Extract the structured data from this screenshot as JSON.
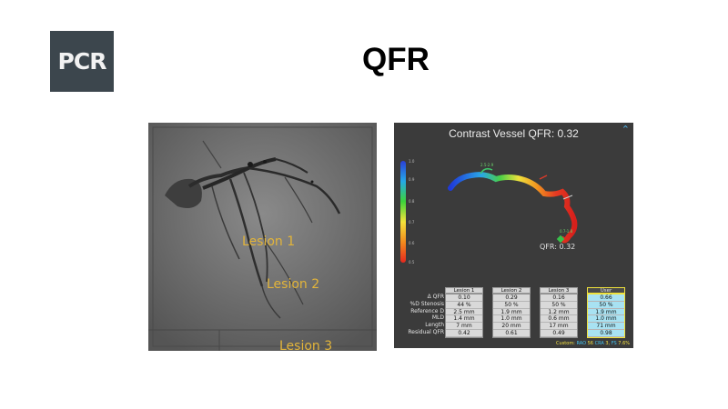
{
  "logo": {
    "text": "PCR"
  },
  "slide_title": "QFR",
  "angiogram": {
    "lesions": [
      "Lesion 1",
      "Lesion 2",
      "Lesion 3"
    ]
  },
  "qfr_panel": {
    "title": "Contrast Vessel QFR: 0.32",
    "qfr_marker": "QFR: 0.32",
    "segment_labels": [
      "2.5-2.9",
      "0.7-1.8"
    ],
    "row_labels": [
      "Δ QFR",
      "%D Stenosis",
      "Reference D",
      "MLD",
      "Length",
      "Residual QFR"
    ],
    "columns": [
      {
        "header": "Lesion 1",
        "values": [
          "0.10",
          "44 %",
          "2.5 mm",
          "1.4 mm",
          "7 mm",
          "0.42"
        ]
      },
      {
        "header": "Lesion 2",
        "values": [
          "0.29",
          "50 %",
          "1.9 mm",
          "1.0 mm",
          "20 mm",
          "0.61"
        ]
      },
      {
        "header": "Lesion 3",
        "values": [
          "0.16",
          "50 %",
          "1.2 mm",
          "0.6 mm",
          "17 mm",
          "0.49"
        ]
      },
      {
        "header": "User",
        "values": [
          "0.66",
          "50 %",
          "1.9 mm",
          "1.0 mm",
          "71 mm",
          "0.98"
        ]
      }
    ],
    "footer": {
      "prefix": "Custom:",
      "rao_label": "RAO",
      "rao_value": "56",
      "cra_label": "CRA",
      "cra_value": "3,",
      "fs_label": "FS",
      "fs_value": "7.6%"
    },
    "colorbar_ticks": [
      "1.0",
      "0.9",
      "0.8",
      "0.7",
      "0.6",
      "0.5"
    ]
  }
}
